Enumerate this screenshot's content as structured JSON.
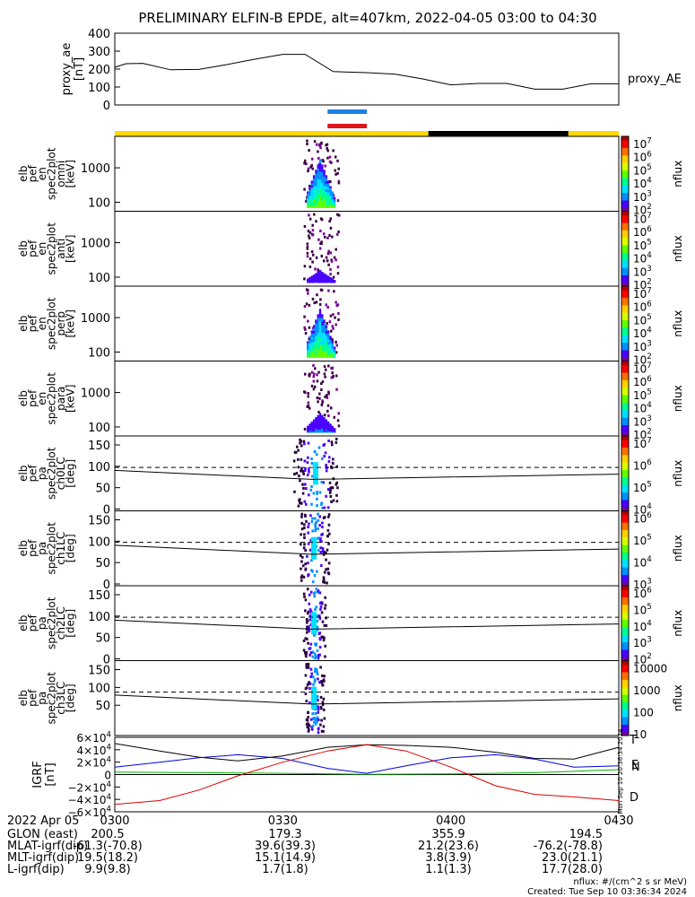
{
  "title": "PRELIMINARY ELFIN-B EPDE, alt=407km, 2022-04-05 03:00 to 04:30",
  "colors": {
    "orbit_yellow": "#ffd800",
    "orbit_black": "#000000",
    "bar_blue": "#1e7fe6",
    "bar_red": "#e0141c",
    "igrf_total": "#000000",
    "igrf_n": "#0000dd",
    "igrf_e": "#00b400",
    "igrf_d": "#dd0000",
    "colormap": [
      "#7a0099",
      "#4b00ff",
      "#0090ff",
      "#00e0ff",
      "#00ff90",
      "#60ff00",
      "#d8ff00",
      "#ffd000",
      "#ff7000",
      "#ff0000",
      "#b00000"
    ]
  },
  "indicator_bars": {
    "science_zone_span": [
      "03:38",
      "03:45"
    ],
    "orbit_segments": [
      {
        "from": "03:00",
        "to": "03:56",
        "color": "yellow"
      },
      {
        "from": "03:56",
        "to": "04:21",
        "color": "black"
      },
      {
        "from": "04:21",
        "to": "04:30",
        "color": "yellow"
      }
    ]
  },
  "proxy_panel": {
    "ylabel_lines": [
      "proxy_ae",
      "[nT]"
    ],
    "yticks": [
      "400",
      "300",
      "200",
      "100",
      "0"
    ],
    "legend": "proxy_AE"
  },
  "spec_panels": [
    {
      "label_lines": [
        "elb",
        "pef",
        "en",
        "spec2plot",
        "omni",
        "[keV]"
      ],
      "yticks": [
        "1000",
        "100"
      ],
      "cb_label": "nflux",
      "cb_ticks": [
        "10^7",
        "10^6",
        "10^5",
        "10^4",
        "10^3",
        "10^2"
      ]
    },
    {
      "label_lines": [
        "elb",
        "pef",
        "en",
        "spec2plot",
        "anti",
        "[keV]"
      ],
      "yticks": [
        "1000",
        "100"
      ],
      "cb_label": "nflux",
      "cb_ticks": [
        "10^7",
        "10^6",
        "10^5",
        "10^4",
        "10^3",
        "10^2"
      ]
    },
    {
      "label_lines": [
        "elb",
        "pef",
        "en",
        "spec2plot",
        "perp",
        "[keV]"
      ],
      "yticks": [
        "1000",
        "100"
      ],
      "cb_label": "nflux",
      "cb_ticks": [
        "10^7",
        "10^6",
        "10^5",
        "10^4",
        "10^3",
        "10^2"
      ]
    },
    {
      "label_lines": [
        "elb",
        "pef",
        "en",
        "spec2plot",
        "para",
        "[keV]"
      ],
      "yticks": [
        "1000",
        "100"
      ],
      "cb_label": "nflux",
      "cb_ticks": [
        "10^7",
        "10^6",
        "10^5",
        "10^4",
        "10^3",
        "10^2"
      ]
    },
    {
      "label_lines": [
        "elb",
        "pef",
        "pa",
        "spec2plot",
        "ch0LC",
        "[deg]"
      ],
      "yticks": [
        "150",
        "100",
        "50",
        "0"
      ],
      "cb_label": "nflux",
      "cb_ticks": [
        "10^7",
        "10^6",
        "10^5",
        "10^4"
      ]
    },
    {
      "label_lines": [
        "elb",
        "pef",
        "pa",
        "spec2plot",
        "ch1LC",
        "[deg]"
      ],
      "yticks": [
        "150",
        "100",
        "50",
        "0"
      ],
      "cb_label": "nflux",
      "cb_ticks": [
        "10^6",
        "10^5",
        "10^4",
        "10^3"
      ]
    },
    {
      "label_lines": [
        "elb",
        "pef",
        "pa",
        "spec2plot",
        "ch2LC",
        "[deg]"
      ],
      "yticks": [
        "150",
        "100",
        "50",
        "0"
      ],
      "cb_label": "nflux",
      "cb_ticks": [
        "10^6",
        "10^5",
        "10^4",
        "10^3",
        "10^2"
      ]
    },
    {
      "label_lines": [
        "elb",
        "pef",
        "pa",
        "spec2plot",
        "ch3LC",
        "[deg]"
      ],
      "yticks": [
        "150",
        "100",
        "50"
      ],
      "cb_label": "nflux",
      "cb_ticks": [
        "10000",
        "1000",
        "100",
        "10"
      ]
    }
  ],
  "igrf_panel": {
    "ylabel_lines": [
      "IGRF",
      "[nT]"
    ],
    "yticks": [
      "6×10^4",
      "4×10^4",
      "2×10^4",
      "0",
      "−2×10^4",
      "−4×10^4",
      "−6×10^4"
    ],
    "legend": [
      "T",
      "E",
      "N",
      "D"
    ],
    "side_text": "Mon Sep 10 20:36:34 2024"
  },
  "chart_data": {
    "type": "line",
    "x_range": [
      "03:00",
      "04:30"
    ],
    "proxy_ae": {
      "ylim": [
        0,
        400
      ],
      "x": [
        "03:00",
        "03:02",
        "03:05",
        "03:10",
        "03:15",
        "03:20",
        "03:25",
        "03:30",
        "03:34",
        "03:39",
        "03:45",
        "03:50",
        "03:55",
        "04:00",
        "04:05",
        "04:10",
        "04:15",
        "04:20",
        "04:25",
        "04:30"
      ],
      "values": [
        210,
        230,
        232,
        196,
        198,
        225,
        255,
        282,
        282,
        186,
        180,
        172,
        145,
        112,
        120,
        120,
        88,
        88,
        118,
        118
      ]
    },
    "igrf": {
      "ylim": [
        -60000,
        60000
      ],
      "series": [
        {
          "name": "T",
          "x": [
            "03:00",
            "03:08",
            "03:15",
            "03:22",
            "03:30",
            "03:38",
            "03:45",
            "03:52",
            "04:00",
            "04:08",
            "04:15",
            "04:22",
            "04:30"
          ],
          "values": [
            50000,
            38000,
            28000,
            22000,
            30000,
            44000,
            48000,
            47000,
            44000,
            36000,
            26000,
            25000,
            44000
          ]
        },
        {
          "name": "N",
          "x": [
            "03:00",
            "03:08",
            "03:15",
            "03:22",
            "03:30",
            "03:38",
            "03:45",
            "03:52",
            "04:00",
            "04:08",
            "04:15",
            "04:22",
            "04:30"
          ],
          "values": [
            12000,
            20000,
            27000,
            32000,
            26000,
            10000,
            2000,
            14000,
            27000,
            32000,
            25000,
            12000,
            14000
          ]
        },
        {
          "name": "E",
          "x": [
            "03:00",
            "03:15",
            "03:30",
            "03:45",
            "04:00",
            "04:15",
            "04:30"
          ],
          "values": [
            4000,
            3000,
            2000,
            500,
            1000,
            3000,
            8000
          ]
        },
        {
          "name": "D",
          "x": [
            "03:00",
            "03:08",
            "03:15",
            "03:22",
            "03:30",
            "03:38",
            "03:45",
            "03:52",
            "04:00",
            "04:08",
            "04:15",
            "04:22",
            "04:30"
          ],
          "values": [
            -48000,
            -42000,
            -25000,
            -2000,
            20000,
            38000,
            48000,
            38000,
            12000,
            -18000,
            -32000,
            -36000,
            -42000
          ]
        }
      ]
    }
  },
  "footer": {
    "x_label": "2022 Apr 05",
    "rows": [
      {
        "label": "GLON (east)",
        "values": [
          "200.5",
          "179.3",
          "355.9",
          "194.5"
        ]
      },
      {
        "label": "MLAT-igrf(dip)",
        "values": [
          "-61.3(-70.8)",
          "39.6(39.3)",
          "21.2(23.6)",
          "-76.2(-78.8)"
        ]
      },
      {
        "label": "MLT-igrf(dip)",
        "values": [
          "19.5(18.2)",
          "15.1(14.9)",
          "3.8(3.9)",
          "23.0(21.1)"
        ]
      },
      {
        "label": "L-igrf(dip)",
        "values": [
          "9.9(9.8)",
          "1.7(1.8)",
          "1.1(1.3)",
          "17.7(28.0)"
        ]
      }
    ],
    "time_ticks": [
      "0300",
      "0330",
      "0400",
      "0430"
    ],
    "units_note": "nflux: #/(cm^2 s sr MeV)",
    "created": "Created: Tue Sep 10 03:36:34 2024"
  }
}
